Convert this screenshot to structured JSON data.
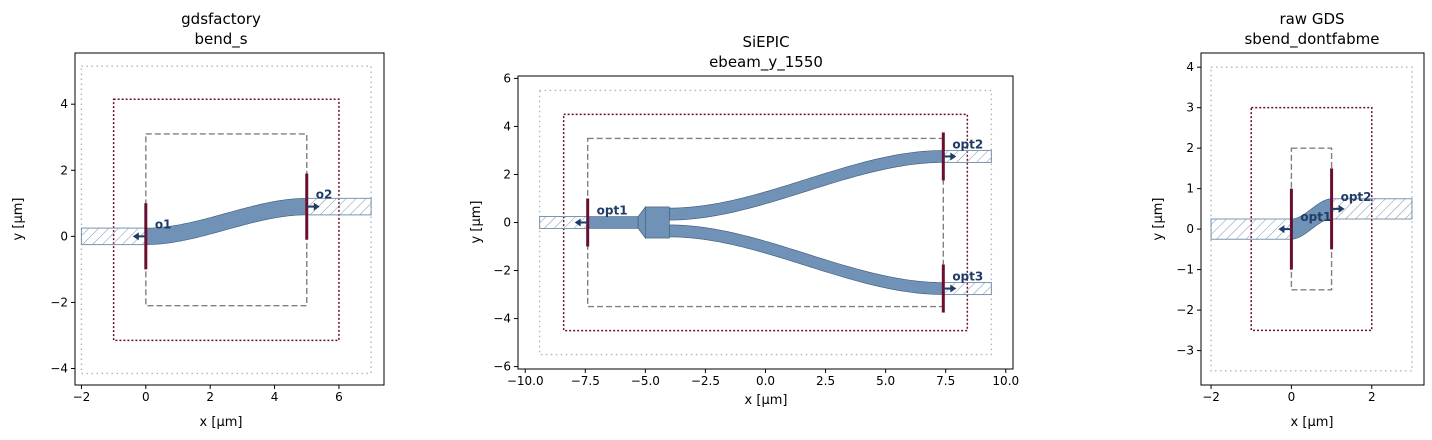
{
  "chart_data": [
    {
      "type": "layout",
      "title": [
        "gdsfactory",
        "bend_s"
      ],
      "xlabel": "x [µm]",
      "ylabel": "y [µm]",
      "xlim": [
        -2.2,
        7.4
      ],
      "ylim": [
        -4.5,
        5.55
      ],
      "xticks": [
        -2,
        0,
        2,
        4,
        6
      ],
      "yticks": [
        -4,
        -2,
        0,
        2,
        4
      ],
      "colors": {
        "waveguide": "#7092b6",
        "outline": "#3d5a78",
        "port_bar": "#6b0f32",
        "port_label": "#1f3d66",
        "keepout": "#6b0f32",
        "dash": "#808080",
        "dotted": "#b4b4b4",
        "hatch": "#7c95b0"
      },
      "waveguides": [
        {
          "kind": "sbend",
          "x0": 0,
          "y0": 0,
          "x1": 5,
          "y1": 0.9,
          "w": 0.5
        }
      ],
      "hatched_stubs": [
        {
          "x0": -2,
          "y0": -0.25,
          "x1": 0,
          "y1": 0.25
        },
        {
          "x0": 5,
          "y0": 0.65,
          "x1": 7,
          "y1": 1.15
        }
      ],
      "rect_dashed": {
        "x0": 0,
        "y0": -2.1,
        "x1": 5,
        "y1": 3.1
      },
      "rect_keepout": {
        "x0": -1,
        "y0": -3.15,
        "x1": 6,
        "y1": 4.15
      },
      "rect_dotted": {
        "x0": -2,
        "y0": -4.15,
        "x1": 7,
        "y1": 5.15
      },
      "ports": [
        {
          "name": "o1",
          "x": 0,
          "y": 0,
          "dir": -1,
          "bar_half": 1
        },
        {
          "name": "o2",
          "x": 5,
          "y": 0.9,
          "dir": 1,
          "bar_half": 1
        }
      ]
    },
    {
      "type": "layout",
      "title": [
        "SiEPIC",
        "ebeam_y_1550"
      ],
      "xlabel": "x [µm]",
      "ylabel": "y [µm]",
      "xlim": [
        -10.3,
        10.3
      ],
      "ylim": [
        -6.1,
        6.1
      ],
      "xticks": [
        -10.0,
        -7.5,
        -5.0,
        -2.5,
        0.0,
        2.5,
        5.0,
        7.5,
        10.0
      ],
      "xtick_labels": [
        "−10.0",
        "−7.5",
        "−5.0",
        "−2.5",
        "0.0",
        "2.5",
        "5.0",
        "7.5",
        "10.0"
      ],
      "yticks": [
        -6,
        -4,
        -2,
        0,
        2,
        4,
        6
      ],
      "colors": {
        "waveguide": "#7092b6",
        "outline": "#3d5a78",
        "port_bar": "#6b0f32",
        "port_label": "#1f3d66",
        "keepout": "#6b0f32",
        "dash": "#808080",
        "dotted": "#b4b4b4",
        "hatch": "#7c95b0"
      },
      "waveguides": [
        {
          "kind": "rect",
          "x0": -7.4,
          "y0": -0.25,
          "x1": -5.3,
          "y1": 0.25
        },
        {
          "kind": "taper",
          "x0": -5.3,
          "x1": -5.0,
          "w0": 0.5,
          "w1": 1.3
        },
        {
          "kind": "rect",
          "x0": -5.0,
          "y0": -0.65,
          "x1": -4.0,
          "y1": 0.65
        },
        {
          "kind": "sbend",
          "x0": -4.0,
          "y0": 0.35,
          "x1": 7.4,
          "y1": 2.75,
          "w": 0.5
        },
        {
          "kind": "sbend",
          "x0": -4.0,
          "y0": -0.35,
          "x1": 7.4,
          "y1": -2.75,
          "w": 0.5
        }
      ],
      "hatched_stubs": [
        {
          "x0": -9.4,
          "y0": -0.25,
          "x1": -7.4,
          "y1": 0.25
        },
        {
          "x0": 7.4,
          "y0": 2.5,
          "x1": 9.4,
          "y1": 3.0
        },
        {
          "x0": 7.4,
          "y0": -3.0,
          "x1": 9.4,
          "y1": -2.5
        }
      ],
      "rect_dashed": {
        "x0": -7.4,
        "y0": -3.5,
        "x1": 7.4,
        "y1": 3.5
      },
      "rect_keepout": {
        "x0": -8.4,
        "y0": -4.5,
        "x1": 8.4,
        "y1": 4.5
      },
      "rect_dotted": {
        "x0": -9.4,
        "y0": -5.5,
        "x1": 9.4,
        "y1": 5.5
      },
      "ports": [
        {
          "name": "opt1",
          "x": -7.4,
          "y": 0,
          "dir": -1,
          "bar_half": 1
        },
        {
          "name": "opt2",
          "x": 7.4,
          "y": 2.75,
          "dir": 1,
          "bar_half": 1
        },
        {
          "name": "opt3",
          "x": 7.4,
          "y": -2.75,
          "dir": 1,
          "bar_half": 1
        }
      ]
    },
    {
      "type": "layout",
      "title": [
        "raw GDS",
        "sbend_dontfabme"
      ],
      "xlabel": "x [µm]",
      "ylabel": "y [µm]",
      "xlim": [
        -2.25,
        3.3
      ],
      "ylim": [
        -3.85,
        4.35
      ],
      "xticks": [
        -2,
        0,
        2
      ],
      "yticks": [
        -3,
        -2,
        -1,
        0,
        1,
        2,
        3,
        4
      ],
      "colors": {
        "waveguide": "#7092b6",
        "outline": "#3d5a78",
        "port_bar": "#6b0f32",
        "port_label": "#1f3d66",
        "keepout": "#6b0f32",
        "dash": "#808080",
        "dotted": "#b4b4b4",
        "hatch": "#7c95b0"
      },
      "waveguides": [
        {
          "kind": "sbend",
          "x0": 0,
          "y0": 0,
          "x1": 1,
          "y1": 0.5,
          "w": 0.5
        }
      ],
      "hatched_stubs": [
        {
          "x0": -2,
          "y0": -0.25,
          "x1": 0,
          "y1": 0.25
        },
        {
          "x0": 1,
          "y0": 0.25,
          "x1": 3,
          "y1": 0.75
        }
      ],
      "rect_dashed": {
        "x0": 0,
        "y0": -1.5,
        "x1": 1,
        "y1": 2.0
      },
      "rect_keepout": {
        "x0": -1,
        "y0": -2.5,
        "x1": 2,
        "y1": 3.0
      },
      "rect_dotted": {
        "x0": -2,
        "y0": -3.5,
        "x1": 3,
        "y1": 4.0
      },
      "ports": [
        {
          "name": "opt1",
          "x": 0,
          "y": 0,
          "dir": -1,
          "bar_half": 1
        },
        {
          "name": "opt2",
          "x": 1,
          "y": 0.5,
          "dir": 1,
          "bar_half": 1
        }
      ]
    }
  ]
}
